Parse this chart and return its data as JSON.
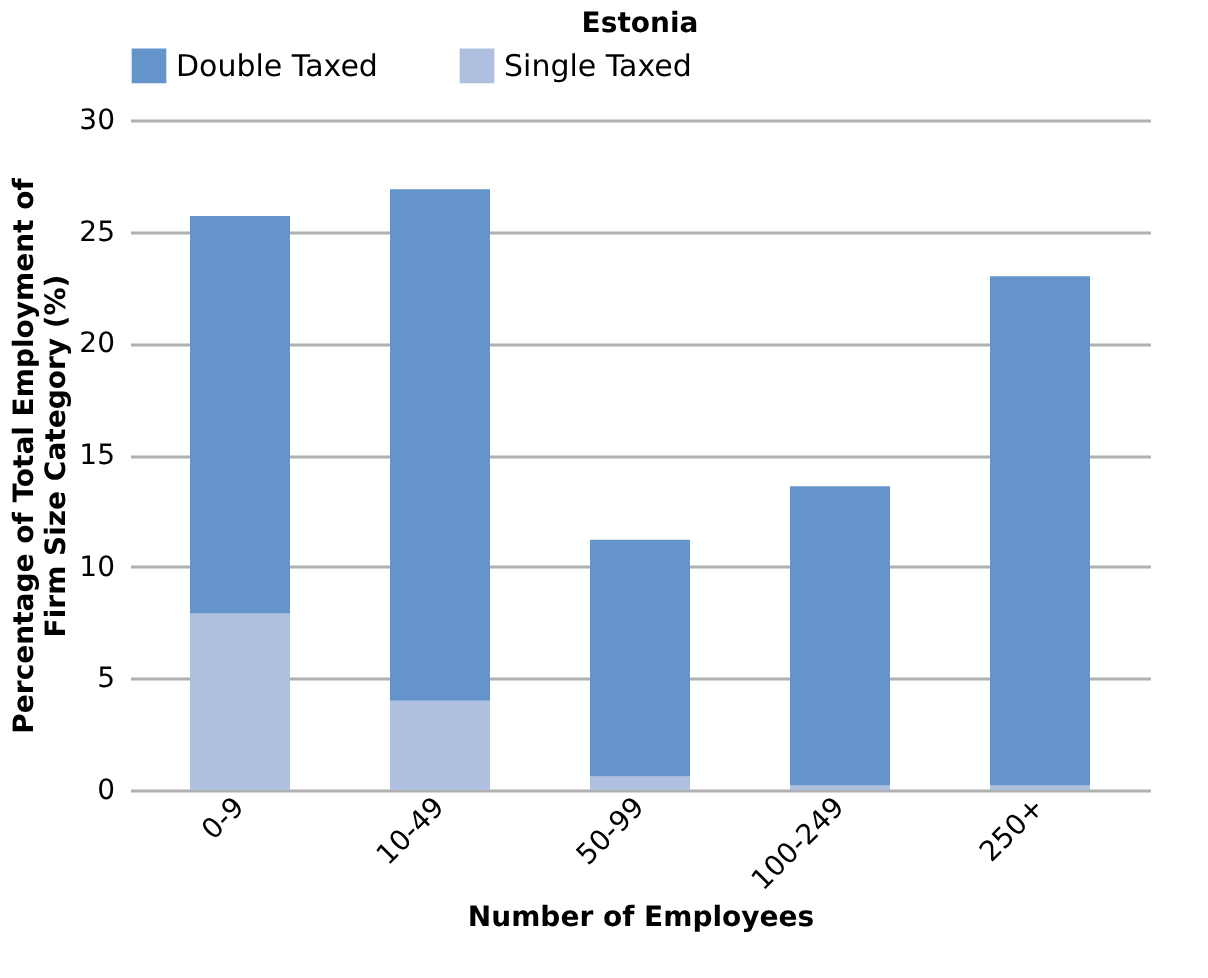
{
  "chart_data": {
    "type": "bar",
    "stacked": true,
    "title": "Estonia",
    "xlabel": "Number of Employees",
    "ylabel": "Percentage of Total Employment of Firm Size Category (%)",
    "categories": [
      "0-9",
      "10-49",
      "50-99",
      "100-249",
      "250+"
    ],
    "series": [
      {
        "name": "Single Taxed",
        "color": "#aebfe0",
        "values": [
          7.9,
          4.0,
          0.6,
          0.2,
          0.2
        ]
      },
      {
        "name": "Double Taxed",
        "color": "#6594cb",
        "values": [
          17.8,
          22.9,
          10.6,
          13.4,
          22.8
        ]
      }
    ],
    "ylim": [
      0,
      30
    ],
    "yticks": [
      0,
      5,
      10,
      15,
      20,
      25,
      30
    ],
    "grid": "y",
    "legend": "top"
  }
}
